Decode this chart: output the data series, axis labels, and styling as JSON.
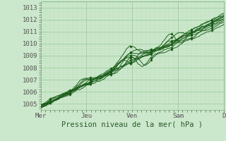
{
  "title": "",
  "xlabel": "Pression niveau de la mer( hPa )",
  "ylabel": "",
  "xlim": [
    0,
    5.0
  ],
  "ylim": [
    1004.5,
    1013.5
  ],
  "yticks": [
    1005,
    1006,
    1007,
    1008,
    1009,
    1010,
    1011,
    1012,
    1013
  ],
  "xtick_labels": [
    "Mer",
    "Jeu",
    "Ven",
    "Sam",
    "D"
  ],
  "xtick_positions": [
    0,
    1.25,
    2.5,
    3.75,
    5.0
  ],
  "bg_color": "#cce8cc",
  "grid_major_color": "#99cc99",
  "grid_minor_color": "#bbddbb",
  "line_color": "#1a5c1a",
  "marker_color": "#1a5c1a"
}
